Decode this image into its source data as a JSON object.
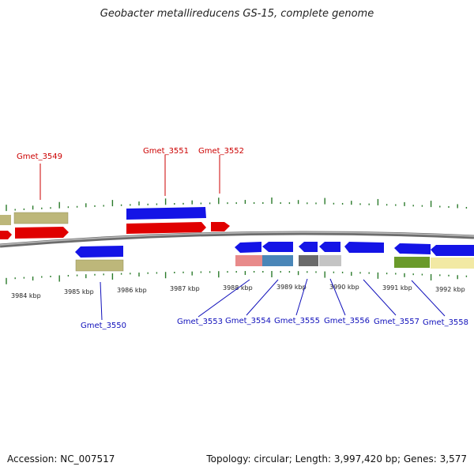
{
  "title": "Geobacter metallireducens GS-15, complete genome",
  "footer": {
    "accession": "Accession: NC_007517",
    "summary": "Topology: circular; Length: 3,997,420 bp; Genes: 3,577"
  },
  "colors": {
    "forward_gene": "#e00000",
    "reverse_gene": "#1010e0",
    "olive": "#bdb77a",
    "backbone": "#8a8a8a",
    "tick": "#2a7a2a",
    "label_forward": "#cc0000",
    "label_reverse": "#1010bb"
  },
  "kbp_labels": [
    "3984 kbp",
    "3985 kbp",
    "3986 kbp",
    "3987 kbp",
    "3988 kbp",
    "3989 kbp",
    "3990 kbp",
    "3991 kbp",
    "3992 kbp"
  ],
  "top_labels": [
    "Gmet_3549",
    "Gmet_3551",
    "Gmet_3552"
  ],
  "bottom_labels": [
    "Gmet_3550",
    "Gmet_3553",
    "Gmet_3554",
    "Gmet_3555",
    "Gmet_3556",
    "Gmet_3557",
    "Gmet_3558"
  ]
}
